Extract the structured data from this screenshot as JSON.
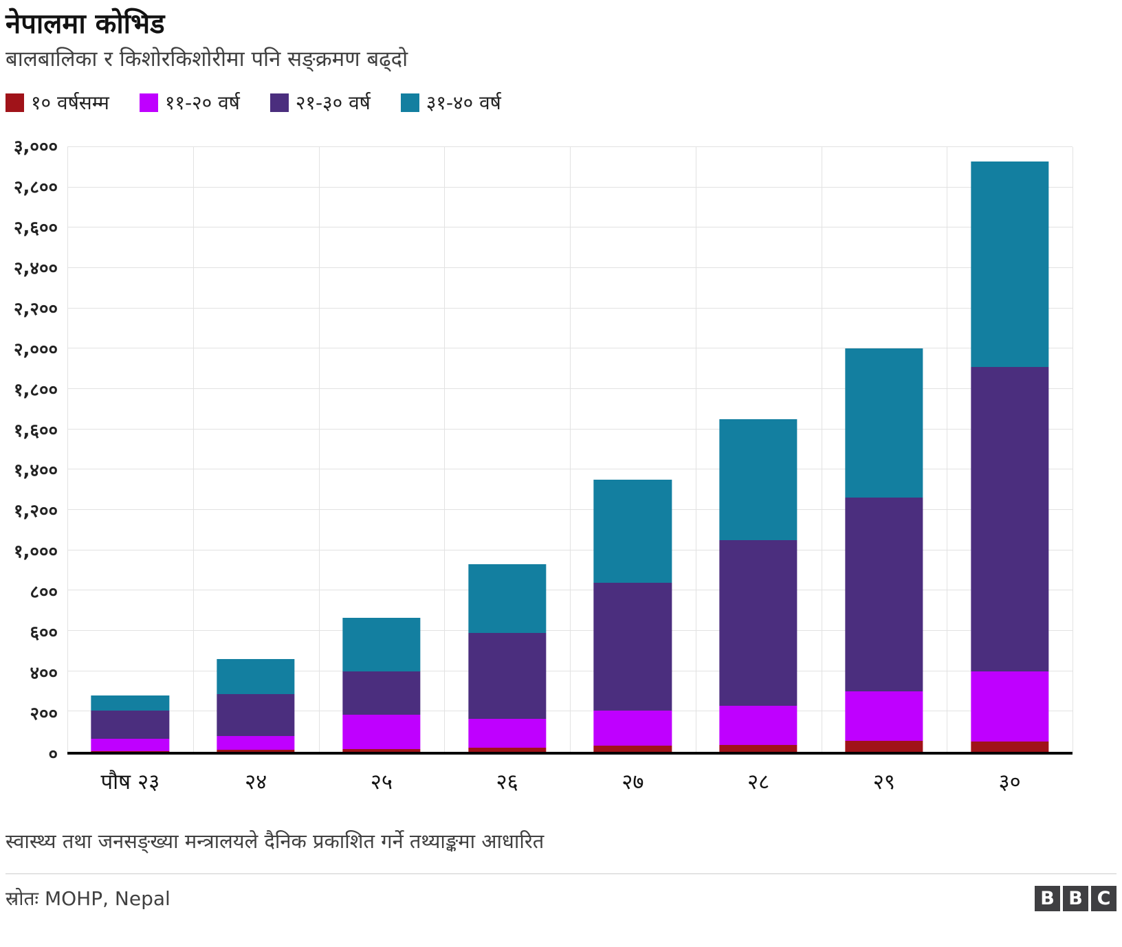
{
  "header": {
    "title": "नेपालमा कोभिड",
    "subtitle": "बालबालिका र किशोरकिशोरीमा पनि सङ्क्रमण बढ्दो"
  },
  "legend": [
    {
      "label": "१० वर्षसम्म",
      "color": "#a01319"
    },
    {
      "label": "११-२० वर्ष",
      "color": "#bf00ff"
    },
    {
      "label": "२१-३० वर्ष",
      "color": "#4b2e7e"
    },
    {
      "label": "३१-४० वर्ष",
      "color": "#137fa0"
    }
  ],
  "chart_data": {
    "type": "bar",
    "stacked": true,
    "title": "नेपालमा कोभिड",
    "subtitle": "बालबालिका र किशोरकिशोरीमा पनि सङ्क्रमण बढ्दो",
    "xlabel": "",
    "ylabel": "",
    "categories": [
      "पौष २३",
      "२४",
      "२५",
      "२६",
      "२७",
      "२८",
      "२९",
      "३०"
    ],
    "series": [
      {
        "name": "१० वर्षसम्म",
        "color": "#a01319",
        "values": [
          5,
          10,
          15,
          20,
          30,
          35,
          55,
          50
        ]
      },
      {
        "name": "११-२० वर्ष",
        "color": "#bf00ff",
        "values": [
          60,
          70,
          170,
          145,
          175,
          195,
          245,
          350
        ]
      },
      {
        "name": "२१-३० वर्ष",
        "color": "#4b2e7e",
        "values": [
          140,
          205,
          215,
          425,
          635,
          820,
          960,
          1510
        ]
      },
      {
        "name": "३१-४० वर्ष",
        "color": "#137fa0",
        "values": [
          75,
          175,
          265,
          340,
          510,
          600,
          740,
          1020
        ]
      }
    ],
    "totals": [
      280,
      460,
      665,
      930,
      1350,
      1650,
      2000,
      2930
    ],
    "ylim": [
      0,
      3000
    ],
    "ytick_step": 200,
    "ytick_labels": [
      "०",
      "२००",
      "४००",
      "६००",
      "८००",
      "१,०००",
      "१,२००",
      "१,४००",
      "१,६००",
      "१,८००",
      "२,०००",
      "२,२००",
      "२,४००",
      "२,६००",
      "२,८००",
      "३,०००"
    ],
    "grid": true,
    "legend_position": "top"
  },
  "footer": {
    "note": "स्वास्थ्य तथा जनसङ्ख्या मन्त्रालयले दैनिक प्रकाशित गर्ने तथ्याङ्कमा आधारित",
    "source": "स्रोतः MOHP, Nepal",
    "logo_letters": [
      "B",
      "B",
      "C"
    ]
  }
}
